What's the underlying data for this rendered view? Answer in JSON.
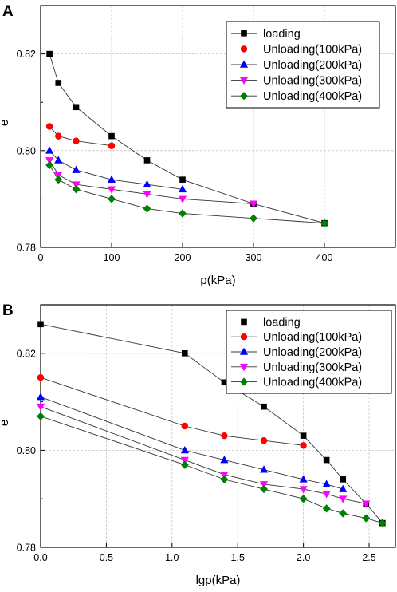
{
  "colors": {
    "loading": "#000000",
    "unloading_100": "#ff0000",
    "unloading_200": "#0000ff",
    "unloading_300": "#ff00ff",
    "unloading_400": "#008000",
    "line": "#333333",
    "grid": "#c8c8c8"
  },
  "chart_data": [
    {
      "panel_label": "A",
      "type": "line",
      "xlabel": "p(kPa)",
      "ylabel": "e",
      "xlim": [
        0,
        500
      ],
      "ylim": [
        0.78,
        0.83
      ],
      "xticks": [
        0,
        100,
        200,
        300,
        400
      ],
      "yticks": [
        0.78,
        0.8,
        0.82
      ],
      "xtick_labels": [
        "0",
        "100",
        "200",
        "300",
        "400"
      ],
      "ytick_labels": [
        "0.78",
        "0.80",
        "0.82"
      ],
      "grid": true,
      "legend_position": "top-right",
      "series": [
        {
          "name": "loading",
          "marker": "square",
          "color": "#000000",
          "x": [
            12.5,
            25,
            50,
            100,
            150,
            200,
            300,
            400
          ],
          "y": [
            0.82,
            0.814,
            0.809,
            0.803,
            0.798,
            0.794,
            0.789,
            0.785
          ]
        },
        {
          "name": "Unloading(100kPa)",
          "marker": "circle",
          "color": "#ff0000",
          "x": [
            12.5,
            25,
            50,
            100
          ],
          "y": [
            0.805,
            0.803,
            0.802,
            0.801
          ]
        },
        {
          "name": "Unloading(200kPa)",
          "marker": "triangle-up",
          "color": "#0000ff",
          "x": [
            12.5,
            25,
            50,
            100,
            150,
            200
          ],
          "y": [
            0.8,
            0.798,
            0.796,
            0.794,
            0.793,
            0.792
          ]
        },
        {
          "name": "Unloading(300kPa)",
          "marker": "triangle-down",
          "color": "#ff00ff",
          "x": [
            12.5,
            25,
            50,
            100,
            150,
            200,
            300
          ],
          "y": [
            0.798,
            0.795,
            0.793,
            0.792,
            0.791,
            0.79,
            0.789
          ]
        },
        {
          "name": "Unloading(400kPa)",
          "marker": "diamond",
          "color": "#008000",
          "x": [
            12.5,
            25,
            50,
            100,
            150,
            200,
            300,
            400
          ],
          "y": [
            0.797,
            0.794,
            0.792,
            0.79,
            0.788,
            0.787,
            0.786,
            0.785
          ]
        }
      ]
    },
    {
      "panel_label": "B",
      "type": "line",
      "xlabel": "lgp(kPa)",
      "ylabel": "e",
      "xlim": [
        0,
        2.7
      ],
      "ylim": [
        0.78,
        0.83
      ],
      "xticks": [
        0,
        0.5,
        1.0,
        1.5,
        2.0,
        2.5
      ],
      "yticks": [
        0.78,
        0.8,
        0.82
      ],
      "xtick_labels": [
        "0.0",
        "0.5",
        "1.0",
        "1.5",
        "2.0",
        "2.5"
      ],
      "ytick_labels": [
        "0.78",
        "0.80",
        "0.82"
      ],
      "grid": true,
      "legend_position": "top-right",
      "series": [
        {
          "name": "loading",
          "marker": "square",
          "color": "#000000",
          "x": [
            0,
            1.097,
            1.398,
            1.699,
            2.0,
            2.176,
            2.301,
            2.477,
            2.602
          ],
          "y": [
            0.826,
            0.82,
            0.814,
            0.809,
            0.803,
            0.798,
            0.794,
            0.789,
            0.785
          ]
        },
        {
          "name": "Unloading(100kPa)",
          "marker": "circle",
          "color": "#ff0000",
          "x": [
            0,
            1.097,
            1.398,
            1.699,
            2.0
          ],
          "y": [
            0.815,
            0.805,
            0.803,
            0.802,
            0.801
          ]
        },
        {
          "name": "Unloading(200kPa)",
          "marker": "triangle-up",
          "color": "#0000ff",
          "x": [
            0,
            1.097,
            1.398,
            1.699,
            2.0,
            2.176,
            2.301
          ],
          "y": [
            0.811,
            0.8,
            0.798,
            0.796,
            0.794,
            0.793,
            0.792
          ]
        },
        {
          "name": "Unloading(300kPa)",
          "marker": "triangle-down",
          "color": "#ff00ff",
          "x": [
            0,
            1.097,
            1.398,
            1.699,
            2.0,
            2.176,
            2.301,
            2.477
          ],
          "y": [
            0.809,
            0.798,
            0.795,
            0.793,
            0.792,
            0.791,
            0.79,
            0.789
          ]
        },
        {
          "name": "Unloading(400kPa)",
          "marker": "diamond",
          "color": "#008000",
          "x": [
            0,
            1.097,
            1.398,
            1.699,
            2.0,
            2.176,
            2.301,
            2.477,
            2.602
          ],
          "y": [
            0.807,
            0.797,
            0.794,
            0.792,
            0.79,
            0.788,
            0.787,
            0.786,
            0.785
          ]
        }
      ]
    }
  ]
}
